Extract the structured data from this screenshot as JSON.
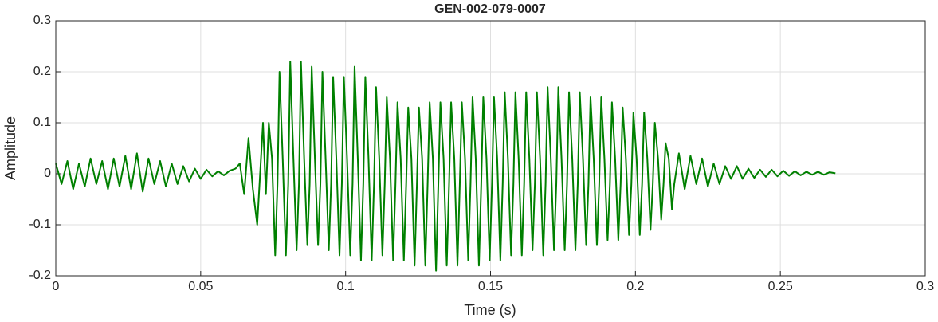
{
  "chart_data": {
    "type": "line",
    "title": "GEN-002-079-0007",
    "xlabel": "Time (s)",
    "ylabel": "Amplitude",
    "xlim": [
      0,
      0.3
    ],
    "ylim": [
      -0.2,
      0.3
    ],
    "xticks": [
      0,
      0.05,
      0.1,
      0.15,
      0.2,
      0.25,
      0.3
    ],
    "yticks": [
      -0.2,
      -0.1,
      0,
      0.1,
      0.2,
      0.3
    ],
    "grid": true,
    "series": [
      {
        "name": "GEN-002-079-0007",
        "color": "#008000",
        "x": [
          0,
          0.002,
          0.004,
          0.006,
          0.008,
          0.01,
          0.012,
          0.014,
          0.016,
          0.018,
          0.02,
          0.022,
          0.024,
          0.026,
          0.028,
          0.03,
          0.032,
          0.034,
          0.036,
          0.038,
          0.04,
          0.042,
          0.044,
          0.046,
          0.048,
          0.05,
          0.052,
          0.054,
          0.056,
          0.058,
          0.06,
          0.062,
          0.0635,
          0.065,
          0.0665,
          0.068,
          0.0695,
          0.0715,
          0.0725,
          0.0735,
          0.0746,
          0.0757,
          0.0765,
          0.0772,
          0.0783,
          0.0794,
          0.0802,
          0.0809,
          0.082,
          0.0831,
          0.0839,
          0.0846,
          0.0857,
          0.0868,
          0.0876,
          0.0883,
          0.0894,
          0.0905,
          0.0913,
          0.092,
          0.0931,
          0.0942,
          0.095,
          0.0957,
          0.0968,
          0.0979,
          0.0987,
          0.0994,
          0.1005,
          0.1016,
          0.1024,
          0.1031,
          0.1042,
          0.1053,
          0.1061,
          0.1068,
          0.1079,
          0.109,
          0.1098,
          0.1105,
          0.1116,
          0.1127,
          0.1135,
          0.1142,
          0.1153,
          0.1164,
          0.1172,
          0.1179,
          0.119,
          0.1201,
          0.1209,
          0.1216,
          0.1227,
          0.1238,
          0.1246,
          0.1253,
          0.1264,
          0.1275,
          0.1283,
          0.129,
          0.1301,
          0.1312,
          0.132,
          0.1327,
          0.1338,
          0.1349,
          0.1357,
          0.1364,
          0.1375,
          0.1386,
          0.1394,
          0.1401,
          0.1412,
          0.1423,
          0.1431,
          0.1438,
          0.1449,
          0.146,
          0.1468,
          0.1475,
          0.1486,
          0.1497,
          0.1505,
          0.1512,
          0.1523,
          0.1534,
          0.1542,
          0.1549,
          0.156,
          0.1571,
          0.1579,
          0.1586,
          0.1597,
          0.1608,
          0.1616,
          0.1623,
          0.1634,
          0.1645,
          0.1653,
          0.166,
          0.1671,
          0.1682,
          0.169,
          0.1697,
          0.1708,
          0.1719,
          0.1727,
          0.1734,
          0.1745,
          0.1756,
          0.1764,
          0.1771,
          0.1782,
          0.1793,
          0.1801,
          0.1808,
          0.1819,
          0.183,
          0.1838,
          0.1845,
          0.1856,
          0.1867,
          0.1875,
          0.1882,
          0.1893,
          0.1904,
          0.1912,
          0.1919,
          0.193,
          0.1941,
          0.1949,
          0.1956,
          0.1967,
          0.1978,
          0.1986,
          0.1993,
          0.2004,
          0.2015,
          0.2023,
          0.203,
          0.2041,
          0.2052,
          0.206,
          0.2067,
          0.2078,
          0.2089,
          0.2097,
          0.2104,
          0.2115,
          0.2126,
          0.2134,
          0.215,
          0.217,
          0.219,
          0.221,
          0.223,
          0.225,
          0.227,
          0.229,
          0.231,
          0.233,
          0.235,
          0.237,
          0.239,
          0.241,
          0.243,
          0.245,
          0.247,
          0.249,
          0.251,
          0.253,
          0.255,
          0.257,
          0.259,
          0.261,
          0.263,
          0.265,
          0.267,
          0.269
        ],
        "values": [
          0.02,
          -0.02,
          0.025,
          -0.03,
          0.02,
          -0.025,
          0.03,
          -0.02,
          0.025,
          -0.03,
          0.03,
          -0.025,
          0.035,
          -0.03,
          0.04,
          -0.035,
          0.03,
          -0.02,
          0.025,
          -0.025,
          0.02,
          -0.02,
          0.015,
          -0.015,
          0.01,
          -0.01,
          0.008,
          -0.005,
          0.005,
          -0.003,
          0.006,
          0.01,
          0.02,
          -0.04,
          0.07,
          -0.03,
          -0.1,
          0.1,
          -0.04,
          0.1,
          0.03,
          -0.16,
          -0.02,
          0.2,
          0.03,
          -0.16,
          -0.02,
          0.22,
          0.03,
          -0.15,
          -0.02,
          0.22,
          0.03,
          -0.14,
          -0.02,
          0.21,
          0.03,
          -0.14,
          -0.02,
          0.2,
          0.03,
          -0.15,
          -0.02,
          0.19,
          0.03,
          -0.16,
          -0.02,
          0.19,
          0.03,
          -0.16,
          -0.02,
          0.21,
          0.03,
          -0.17,
          -0.02,
          0.19,
          0.03,
          -0.17,
          -0.02,
          0.17,
          0.03,
          -0.16,
          -0.02,
          0.15,
          0.03,
          -0.17,
          -0.02,
          0.14,
          0.03,
          -0.17,
          -0.02,
          0.13,
          0.03,
          -0.18,
          -0.02,
          0.13,
          0.03,
          -0.18,
          -0.02,
          0.14,
          0.03,
          -0.19,
          -0.02,
          0.14,
          0.03,
          -0.18,
          -0.02,
          0.14,
          0.03,
          -0.18,
          -0.02,
          0.14,
          0.03,
          -0.17,
          -0.02,
          0.15,
          0.03,
          -0.18,
          -0.02,
          0.15,
          0.03,
          -0.17,
          -0.02,
          0.15,
          0.03,
          -0.17,
          -0.02,
          0.16,
          0.03,
          -0.16,
          -0.02,
          0.16,
          0.03,
          -0.16,
          -0.02,
          0.16,
          0.03,
          -0.15,
          -0.02,
          0.16,
          0.03,
          -0.16,
          -0.02,
          0.17,
          0.03,
          -0.15,
          -0.02,
          0.17,
          0.03,
          -0.15,
          -0.02,
          0.16,
          0.03,
          -0.15,
          -0.02,
          0.16,
          0.03,
          -0.14,
          -0.02,
          0.15,
          0.03,
          -0.14,
          -0.02,
          0.15,
          0.03,
          -0.13,
          -0.02,
          0.14,
          0.03,
          -0.13,
          -0.02,
          0.13,
          0.03,
          -0.12,
          -0.02,
          0.12,
          0.03,
          -0.12,
          -0.02,
          0.12,
          0.03,
          -0.11,
          -0.02,
          0.1,
          0.03,
          -0.09,
          -0.02,
          0.06,
          0.03,
          -0.07,
          -0.02,
          0.04,
          -0.03,
          0.035,
          -0.02,
          0.03,
          -0.025,
          0.02,
          -0.02,
          0.015,
          -0.01,
          0.015,
          -0.01,
          0.01,
          -0.008,
          0.008,
          -0.006,
          0.008,
          -0.005,
          0.006,
          -0.004,
          0.005,
          -0.003,
          0.004,
          -0.002,
          0.004,
          -0.002,
          0.003,
          0.001
        ]
      }
    ]
  }
}
